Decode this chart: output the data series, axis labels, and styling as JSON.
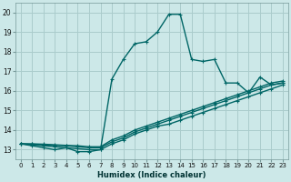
{
  "xlabel": "Humidex (Indice chaleur)",
  "bg_color": "#cce8e8",
  "grid_color": "#aacccc",
  "line_color": "#006666",
  "lines": [
    {
      "x": [
        0,
        1,
        2,
        3,
        4,
        5,
        6,
        7,
        8,
        9,
        10,
        11,
        12,
        13,
        14,
        15,
        16,
        17,
        18,
        19,
        20,
        21,
        22,
        23
      ],
      "y": [
        13.3,
        13.2,
        13.1,
        13.0,
        13.1,
        12.9,
        12.9,
        13.0,
        16.6,
        17.6,
        18.4,
        18.5,
        19.0,
        19.9,
        19.9,
        17.6,
        17.5,
        17.6,
        16.4,
        16.4,
        15.9,
        16.7,
        16.3,
        16.4
      ]
    },
    {
      "x": [
        0,
        1,
        2,
        3,
        4,
        5,
        6,
        7,
        8,
        9,
        10,
        11,
        12,
        13,
        14,
        15,
        16,
        17,
        18,
        19,
        20,
        21,
        22,
        23
      ],
      "y": [
        13.3,
        13.25,
        13.2,
        13.15,
        13.1,
        13.05,
        13.0,
        13.0,
        13.3,
        13.5,
        13.8,
        14.0,
        14.2,
        14.3,
        14.5,
        14.7,
        14.9,
        15.1,
        15.3,
        15.5,
        15.7,
        15.9,
        16.1,
        16.3
      ]
    },
    {
      "x": [
        0,
        1,
        2,
        3,
        4,
        5,
        6,
        7,
        8,
        9,
        10,
        11,
        12,
        13,
        14,
        15,
        16,
        17,
        18,
        19,
        20,
        21,
        22,
        23
      ],
      "y": [
        13.3,
        13.28,
        13.25,
        13.22,
        13.2,
        13.15,
        13.1,
        13.1,
        13.4,
        13.6,
        13.9,
        14.1,
        14.3,
        14.5,
        14.7,
        14.9,
        15.1,
        15.3,
        15.5,
        15.7,
        15.9,
        16.1,
        16.3,
        16.4
      ]
    },
    {
      "x": [
        0,
        1,
        2,
        3,
        4,
        5,
        6,
        7,
        8,
        9,
        10,
        11,
        12,
        13,
        14,
        15,
        16,
        17,
        18,
        19,
        20,
        21,
        22,
        23
      ],
      "y": [
        13.3,
        13.3,
        13.28,
        13.25,
        13.22,
        13.2,
        13.15,
        13.15,
        13.5,
        13.7,
        14.0,
        14.2,
        14.4,
        14.6,
        14.8,
        15.0,
        15.2,
        15.4,
        15.6,
        15.8,
        16.0,
        16.2,
        16.4,
        16.5
      ]
    }
  ],
  "ylim": [
    12.5,
    20.5
  ],
  "xlim": [
    -0.5,
    23.5
  ],
  "yticks": [
    13,
    14,
    15,
    16,
    17,
    18,
    19,
    20
  ],
  "xticks": [
    0,
    1,
    2,
    3,
    4,
    5,
    6,
    7,
    8,
    9,
    10,
    11,
    12,
    13,
    14,
    15,
    16,
    17,
    18,
    19,
    20,
    21,
    22,
    23
  ],
  "xtick_labels": [
    "0",
    "1",
    "2",
    "3",
    "4",
    "5",
    "6",
    "7",
    "8",
    "9",
    "10",
    "11",
    "12",
    "13",
    "14",
    "15",
    "16",
    "17",
    "18",
    "19",
    "20",
    "21",
    "22",
    "23"
  ],
  "xlabel_fontsize": 6,
  "tick_fontsize": 5,
  "ytick_fontsize": 5.5
}
